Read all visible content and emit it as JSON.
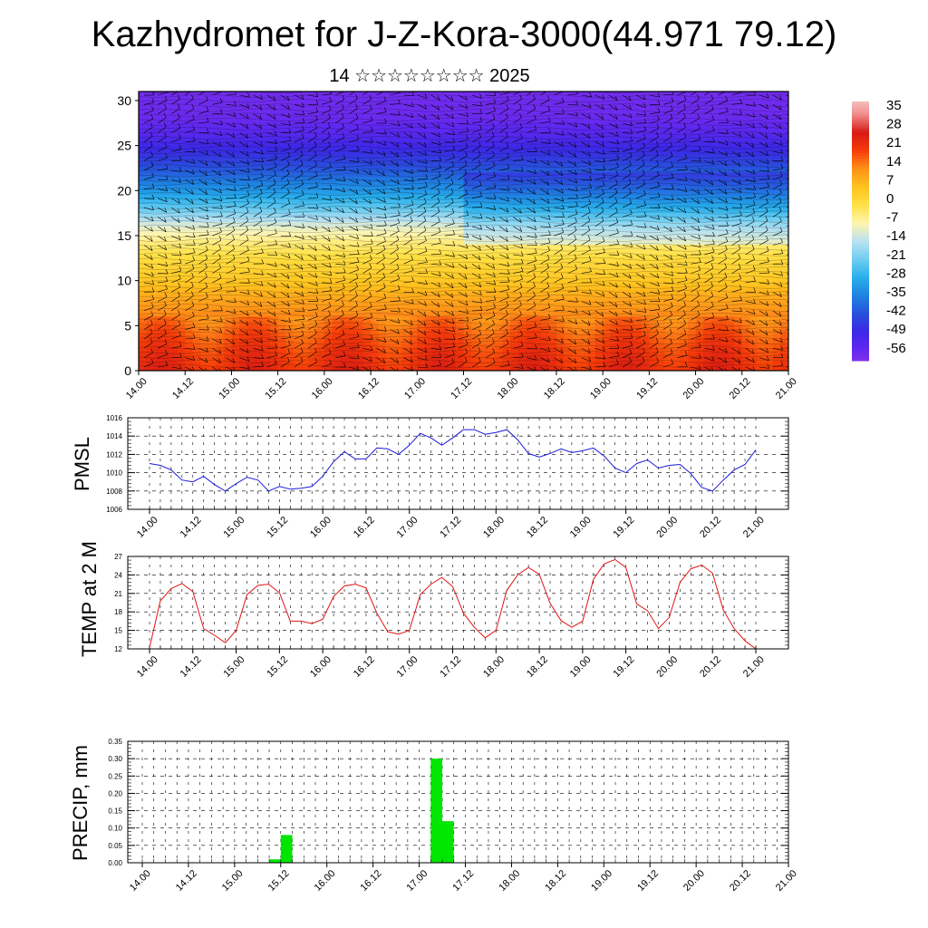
{
  "title": "Kazhydromet for J-Z-Kora-3000(44.971 79.12)",
  "subtitle": "14 ☆☆☆☆☆☆☆☆ 2025",
  "x_tick_labels": [
    "14.00",
    "14.12",
    "15.00",
    "15.12",
    "16.00",
    "16.12",
    "17.00",
    "17.12",
    "18.00",
    "18.12",
    "19.00",
    "19.12",
    "20.00",
    "20.12",
    "21.00"
  ],
  "colors": {
    "pmsl_line": "#1a1adc",
    "temp_line": "#e01414",
    "precip_bar": "#00e600",
    "grid": "#000000"
  },
  "chart_data": [
    {
      "type": "heatmap",
      "title": "",
      "xlabel": "",
      "ylabel": "",
      "x": [
        "14.00",
        "14.12",
        "15.00",
        "15.12",
        "16.00",
        "16.12",
        "17.00",
        "17.12",
        "18.00",
        "18.12",
        "19.00",
        "19.12",
        "20.00",
        "20.12",
        "21.00"
      ],
      "ylim": [
        0,
        31
      ],
      "y_ticks": [
        0,
        5,
        10,
        15,
        20,
        25,
        30
      ],
      "colorbar_labels": [
        "35",
        "28",
        "21",
        "14",
        "7",
        "0",
        "-7",
        "-14",
        "-21",
        "-28",
        "-35",
        "-42",
        "-49",
        "-56"
      ],
      "colorbar_range": [
        -60,
        40
      ],
      "overlay": "wind barbs",
      "mean_profile": {
        "levels": [
          0,
          2,
          4,
          6,
          8,
          10,
          12,
          14,
          16,
          18,
          20,
          22,
          24,
          26,
          28,
          31
        ],
        "values": [
          24,
          22,
          19,
          15,
          11,
          6,
          2,
          -3,
          -10,
          -22,
          -32,
          -40,
          -47,
          -53,
          -57,
          -58
        ]
      }
    },
    {
      "type": "line",
      "title": "",
      "ylabel": "PMSL",
      "ylim": [
        1006,
        1016
      ],
      "y_ticks": [
        "1006",
        "1008",
        "1010",
        "1012",
        "1014",
        "1016"
      ],
      "x_hours": [
        0,
        3,
        6,
        9,
        12,
        15,
        18,
        21,
        24,
        27,
        30,
        33,
        36,
        39,
        42,
        45,
        48,
        51,
        54,
        57,
        60,
        63,
        66,
        69,
        72,
        75,
        78,
        81,
        84,
        87,
        90,
        93,
        96,
        99,
        102,
        105,
        108,
        111,
        114,
        117,
        120,
        123,
        126,
        129,
        132,
        135,
        138,
        141,
        144,
        147,
        150,
        153,
        156,
        159,
        162,
        165,
        168
      ],
      "values": [
        1011,
        1010.8,
        1010.3,
        1009.2,
        1009,
        1009.6,
        1008.7,
        1008,
        1008.8,
        1009.5,
        1009.2,
        1008,
        1008.5,
        1008.2,
        1008.3,
        1008.5,
        1009.6,
        1011.2,
        1012.3,
        1011.5,
        1011.5,
        1012.7,
        1012.6,
        1012,
        1013,
        1014.3,
        1013.8,
        1013,
        1013.8,
        1014.7,
        1014.7,
        1014.2,
        1014.4,
        1014.7,
        1013.6,
        1012.1,
        1011.7,
        1012.1,
        1012.6,
        1012.2,
        1012.4,
        1012.7,
        1011.8,
        1010.5,
        1010,
        1011,
        1011.4,
        1010.5,
        1010.8,
        1010.9,
        1009.9,
        1008.4,
        1008,
        1009.2,
        1010.3,
        1010.9,
        1012.5
      ],
      "series": [
        {
          "values": []
        }
      ]
    },
    {
      "type": "line",
      "title": "",
      "ylabel": "TEMP at 2 M",
      "ylim": [
        12,
        27
      ],
      "y_ticks": [
        "12",
        "15",
        "18",
        "21",
        "24",
        "27"
      ],
      "x_hours": [
        0,
        3,
        6,
        9,
        12,
        15,
        18,
        21,
        24,
        27,
        30,
        33,
        36,
        39,
        42,
        45,
        48,
        51,
        54,
        57,
        60,
        63,
        66,
        69,
        72,
        75,
        78,
        81,
        84,
        87,
        90,
        93,
        96,
        99,
        102,
        105,
        108,
        111,
        114,
        117,
        120,
        123,
        126,
        129,
        132,
        135,
        138,
        141,
        144,
        147,
        150,
        153,
        156,
        159,
        162,
        165,
        168
      ],
      "values": [
        12.2,
        19.8,
        21.8,
        22.6,
        21.3,
        15.3,
        14.2,
        13,
        15,
        20.8,
        22.3,
        22.5,
        21.1,
        16.5,
        16.5,
        16.1,
        16.8,
        20.5,
        22.2,
        22.5,
        21.9,
        17.8,
        14.8,
        14.4,
        15,
        20.8,
        22.5,
        23.6,
        22.1,
        17.8,
        15.5,
        13.8,
        15,
        21.5,
        24,
        25.2,
        24.1,
        19.4,
        16.6,
        15.5,
        16.5,
        23.3,
        25.8,
        26.5,
        25.2,
        19.3,
        18.2,
        15.3,
        17.1,
        22.8,
        25,
        25.6,
        24.3,
        18.3,
        15.3,
        13.3,
        12
      ]
    },
    {
      "type": "bar",
      "title": "",
      "ylabel": "PRECIP, mm",
      "ylim": [
        0,
        0.35
      ],
      "y_ticks": [
        "0.00",
        "0.05",
        "0.10",
        "0.15",
        "0.20",
        "0.25",
        "0.30",
        "0.35"
      ],
      "x_hours": [
        33,
        36,
        75,
        78
      ],
      "bar_width_hours": 3,
      "values": [
        0.01,
        0.08,
        0.3,
        0.12
      ]
    }
  ]
}
